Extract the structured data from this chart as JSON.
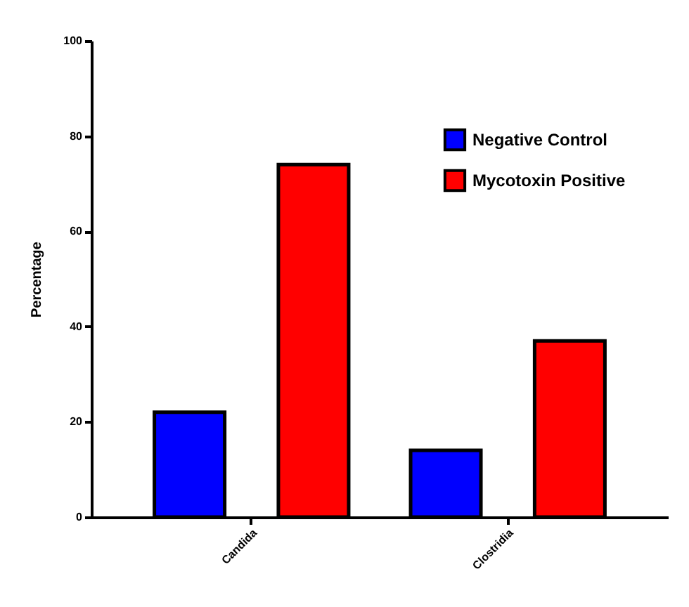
{
  "chart_data": {
    "type": "bar",
    "ylabel": "Percentage",
    "categories": [
      "Candida",
      "Clostridia"
    ],
    "series": [
      {
        "name": "Negative Control",
        "color": "#0000ff",
        "values": [
          22,
          14
        ]
      },
      {
        "name": "Mycotoxin Positive",
        "color": "#ff0000",
        "values": [
          74,
          37
        ]
      }
    ],
    "ylim": [
      0,
      100
    ],
    "yticks": [
      0,
      20,
      40,
      60,
      80,
      100
    ],
    "grid": false,
    "legend": "top right"
  }
}
